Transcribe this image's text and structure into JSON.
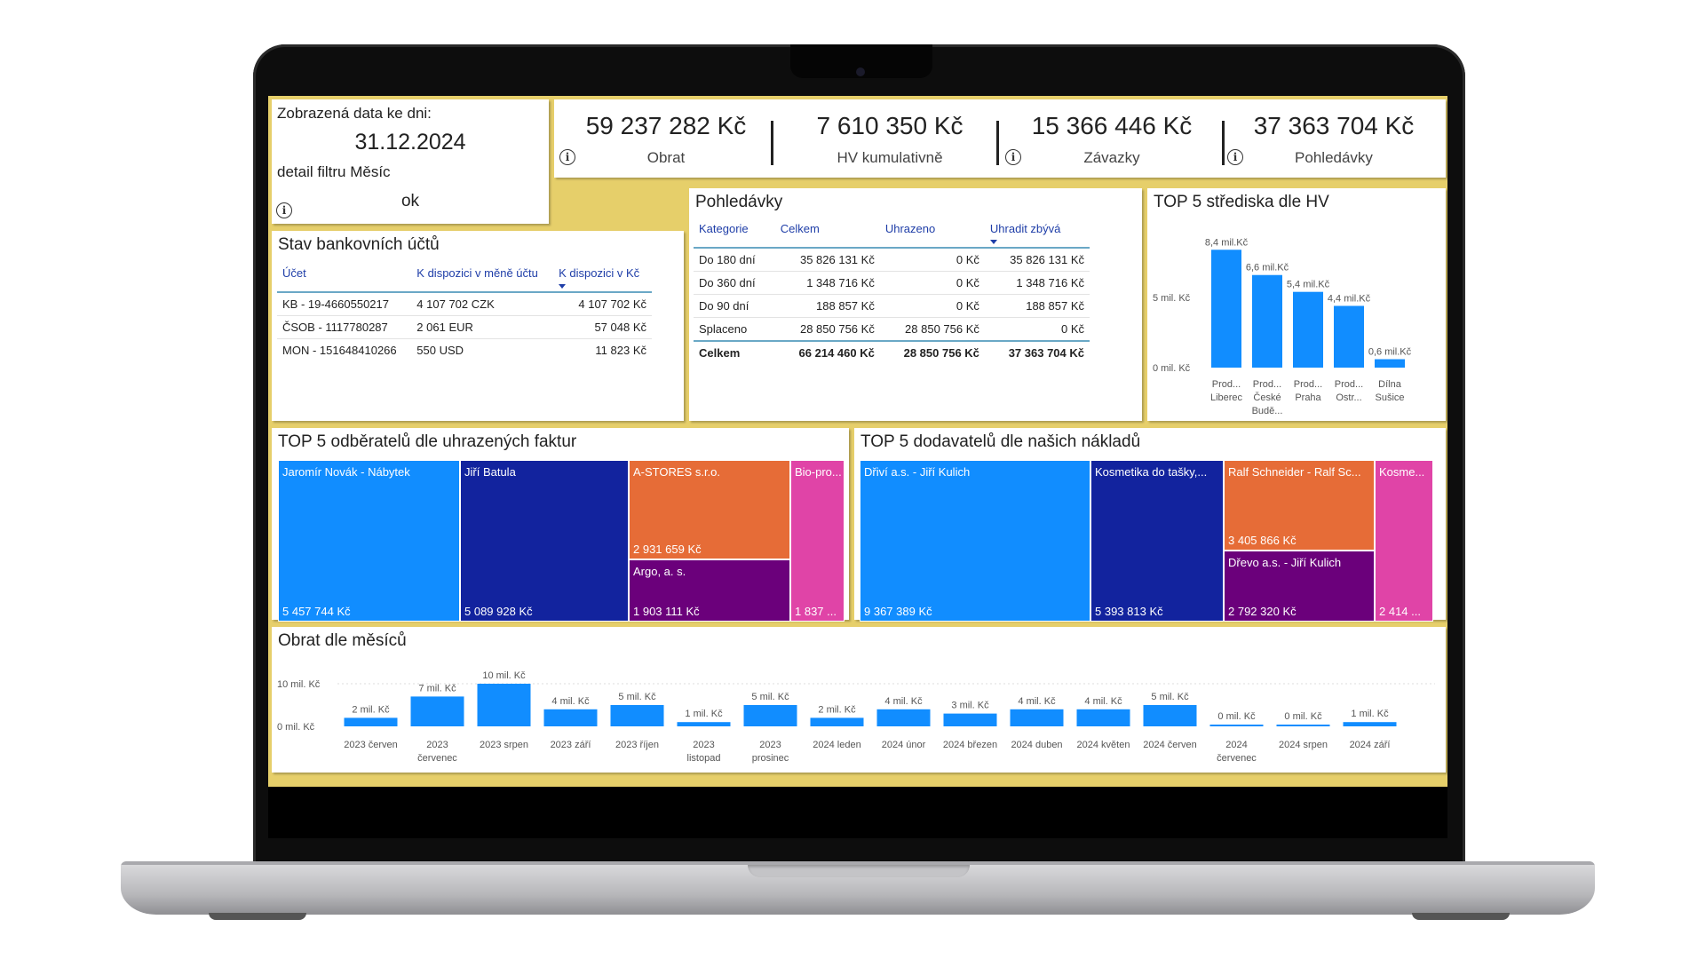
{
  "filter": {
    "label": "Zobrazená data ke dni:",
    "date": "31.12.2024",
    "detail": "detail filtru Měsíc",
    "status": "ok"
  },
  "kpis": [
    {
      "value": "59 237 282 Kč",
      "label": "Obrat"
    },
    {
      "value": "7 610 350 Kč",
      "label": "HV kumulativně"
    },
    {
      "value": "15 366 446 Kč",
      "label": "Závazky"
    },
    {
      "value": "37 363 704 Kč",
      "label": "Pohledávky"
    }
  ],
  "bank": {
    "title": "Stav bankovních účtů",
    "headers": [
      "Účet",
      "K dispozici v měně účtu",
      "K dispozici v Kč"
    ],
    "rows": [
      [
        "KB - 19-4660550217",
        "4 107 702 CZK",
        "4 107 702 Kč"
      ],
      [
        "ČSOB - 1117780287",
        "2 061 EUR",
        "57 048 Kč"
      ],
      [
        "MON - 151648410266",
        "550 USD",
        "11 823 Kč"
      ]
    ]
  },
  "receivables": {
    "title": "Pohledávky",
    "headers": [
      "Kategorie",
      "Celkem",
      "Uhrazeno",
      "Uhradit zbývá"
    ],
    "rows": [
      [
        "Do 180 dní",
        "35 826 131 Kč",
        "0 Kč",
        "35 826 131 Kč"
      ],
      [
        "Do 360 dní",
        "1 348 716 Kč",
        "0 Kč",
        "1 348 716 Kč"
      ],
      [
        "Do 90 dní",
        "188 857 Kč",
        "0 Kč",
        "188 857 Kč"
      ],
      [
        "Splaceno",
        "28 850 756 Kč",
        "28 850 756 Kč",
        "0 Kč"
      ]
    ],
    "total": [
      "Celkem",
      "66 214 460 Kč",
      "28 850 756 Kč",
      "37 363 704 Kč"
    ]
  },
  "top_centers": {
    "title": "TOP 5 střediska dle HV",
    "y_ticks": [
      "5 mil. Kč",
      "0 mil. Kč"
    ]
  },
  "customers": {
    "title": "TOP 5 odběratelů dle uhrazených faktur",
    "tiles": [
      {
        "name": "Jaromír Novák - Nábytek",
        "value": "5 457 744 Kč",
        "color": "#118dff"
      },
      {
        "name": "Jiří Batula",
        "value": "5 089 928 Kč",
        "color": "#12239e"
      },
      {
        "name": "A-STORES s.r.o.",
        "value": "2 931 659 Kč",
        "color": "#e66c37"
      },
      {
        "name": "Argo, a. s.",
        "value": "1 903 111 Kč",
        "color": "#6b007b"
      },
      {
        "name": "Bio-pro...",
        "value": "1 837 ...",
        "color": "#e044a7"
      }
    ]
  },
  "suppliers": {
    "title": "TOP 5 dodavatelů dle našich nákladů",
    "tiles": [
      {
        "name": "Dřiví a.s. - Jiří Kulich",
        "value": "9 367 389 Kč",
        "color": "#118dff"
      },
      {
        "name": "Kosmetika do tašky,...",
        "value": "5 393 813 Kč",
        "color": "#12239e"
      },
      {
        "name": "Ralf Schneider - Ralf Sc...",
        "value": "3 405 866 Kč",
        "color": "#e66c37"
      },
      {
        "name": "Dřevo a.s. - Jiří Kulich",
        "value": "2 792 320 Kč",
        "color": "#6b007b"
      },
      {
        "name": "Kosme...",
        "value": "2 414 ...",
        "color": "#e044a7"
      }
    ]
  },
  "monthly": {
    "title": "Obrat dle měsíců",
    "y_ticks": [
      "10 mil. Kč",
      "0 mil. Kč"
    ]
  },
  "chart_data": [
    {
      "type": "bar",
      "title": "TOP 5 střediska dle HV",
      "categories": [
        [
          "Prod...",
          "Liberec"
        ],
        [
          "Prod...",
          "České",
          "Budě..."
        ],
        [
          "Prod...",
          "Praha"
        ],
        [
          "Prod...",
          "Ostr..."
        ],
        [
          "Dílna",
          "Sušice"
        ]
      ],
      "values": [
        8.4,
        6.6,
        5.4,
        4.4,
        0.6
      ],
      "data_labels": [
        "8,4 mil.Kč",
        "6,6 mil.Kč",
        "5,4 mil.Kč",
        "4,4 mil.Kč",
        "0,6 mil.Kč"
      ],
      "ylim": [
        0,
        10
      ],
      "color": "#118dff"
    },
    {
      "type": "bar",
      "title": "Obrat dle měsíců",
      "categories": [
        [
          "2023 červen"
        ],
        [
          "2023",
          "červenec"
        ],
        [
          "2023 srpen"
        ],
        [
          "2023 září"
        ],
        [
          "2023 říjen"
        ],
        [
          "2023",
          "listopad"
        ],
        [
          "2023",
          "prosinec"
        ],
        [
          "2024 leden"
        ],
        [
          "2024 únor"
        ],
        [
          "2024 březen"
        ],
        [
          "2024 duben"
        ],
        [
          "2024 květen"
        ],
        [
          "2024 červen"
        ],
        [
          "2024",
          "červenec"
        ],
        [
          "2024 srpen"
        ],
        [
          "2024 září"
        ]
      ],
      "values": [
        2,
        7,
        10,
        4,
        5,
        1,
        5,
        2,
        4,
        3,
        4,
        4,
        5,
        0.2,
        0.2,
        1
      ],
      "data_labels": [
        "2 mil. Kč",
        "7 mil. Kč",
        "10 mil. Kč",
        "4 mil. Kč",
        "5 mil. Kč",
        "1 mil. Kč",
        "5 mil. Kč",
        "2 mil. Kč",
        "4 mil. Kč",
        "3 mil. Kč",
        "4 mil. Kč",
        "4 mil. Kč",
        "5 mil. Kč",
        "0 mil. Kč",
        "0 mil. Kč",
        "1 mil. Kč"
      ],
      "ylim": [
        0,
        12
      ],
      "color": "#118dff"
    }
  ]
}
